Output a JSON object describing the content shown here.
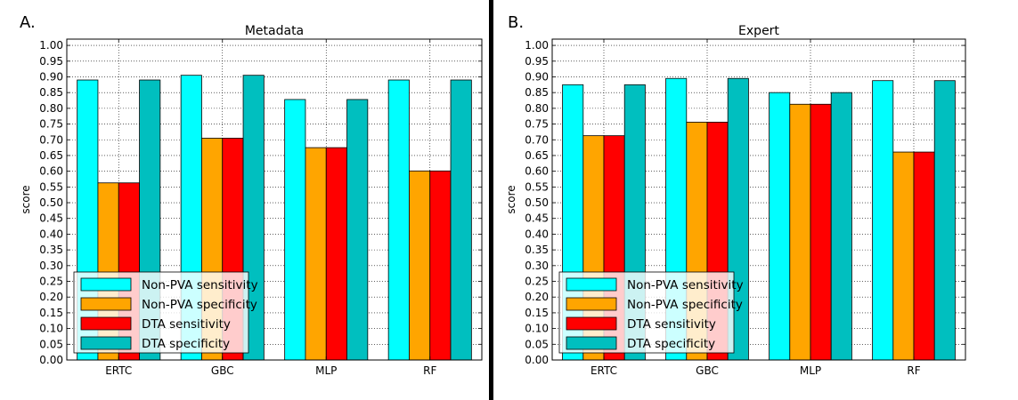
{
  "colors": {
    "Non-PVA sensitivity": "#00ffff",
    "Non-PVA specificity": "#ffa500",
    "DTA sensitivity": "#ff0000",
    "DTA specificity": "#00bfbf",
    "divider": "#000000"
  },
  "chart_data": [
    {
      "type": "bar",
      "panel_label": "A.",
      "title": "Metadata",
      "ylabel": "score",
      "xlabel": "",
      "ylim": [
        0,
        1.02
      ],
      "yticks": [
        "0.00",
        "0.05",
        "0.10",
        "0.15",
        "0.20",
        "0.25",
        "0.30",
        "0.35",
        "0.40",
        "0.45",
        "0.50",
        "0.55",
        "0.60",
        "0.65",
        "0.70",
        "0.75",
        "0.80",
        "0.85",
        "0.90",
        "0.95",
        "1.00"
      ],
      "grid": true,
      "legend_position": "lower-left",
      "categories": [
        "ERTC",
        "GBC",
        "MLP",
        "RF"
      ],
      "series": [
        {
          "name": "Non-PVA sensitivity",
          "values": [
            0.89,
            0.905,
            0.828,
            0.89
          ]
        },
        {
          "name": "Non-PVA specificity",
          "values": [
            0.563,
            0.705,
            0.675,
            0.601
          ]
        },
        {
          "name": "DTA sensitivity",
          "values": [
            0.563,
            0.705,
            0.675,
            0.601
          ]
        },
        {
          "name": "DTA specificity",
          "values": [
            0.89,
            0.905,
            0.828,
            0.89
          ]
        }
      ]
    },
    {
      "type": "bar",
      "panel_label": "B.",
      "title": "Expert",
      "ylabel": "score",
      "xlabel": "",
      "ylim": [
        0,
        1.02
      ],
      "yticks": [
        "0.00",
        "0.05",
        "0.10",
        "0.15",
        "0.20",
        "0.25",
        "0.30",
        "0.35",
        "0.40",
        "0.45",
        "0.50",
        "0.55",
        "0.60",
        "0.65",
        "0.70",
        "0.75",
        "0.80",
        "0.85",
        "0.90",
        "0.95",
        "1.00"
      ],
      "grid": true,
      "legend_position": "lower-left",
      "categories": [
        "ERTC",
        "GBC",
        "MLP",
        "RF"
      ],
      "series": [
        {
          "name": "Non-PVA sensitivity",
          "values": [
            0.875,
            0.895,
            0.85,
            0.888
          ]
        },
        {
          "name": "Non-PVA specificity",
          "values": [
            0.713,
            0.756,
            0.813,
            0.661
          ]
        },
        {
          "name": "DTA sensitivity",
          "values": [
            0.713,
            0.756,
            0.813,
            0.661
          ]
        },
        {
          "name": "DTA specificity",
          "values": [
            0.875,
            0.895,
            0.85,
            0.888
          ]
        }
      ]
    }
  ]
}
